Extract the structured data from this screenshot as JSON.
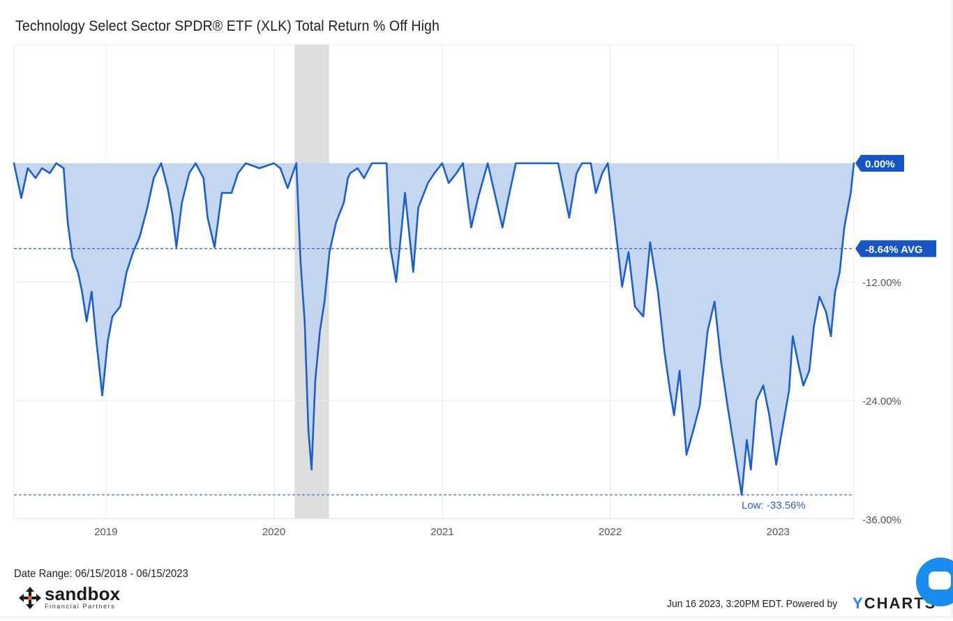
{
  "title": "Technology Select Sector SPDR® ETF (XLK) Total Return % Off High",
  "footer": {
    "date_range": "Date Range: 06/15/2018 - 06/15/2023",
    "timestamp": "Jun 16 2023, 3:20PM EDT. Powered by",
    "powered_brand_y": "Y",
    "powered_brand_rest": "CHARTS"
  },
  "logo": {
    "name": "sandbox",
    "subtitle": "Financial Partners"
  },
  "colors": {
    "line": "#1a5fd1",
    "fill": "#c2d4f0",
    "recession": "#dedede",
    "label_bg": "#1556c4",
    "axis_text": "#555555",
    "grid": "#ebebeb"
  },
  "chart_data": {
    "type": "area",
    "x_start": "2018-06-15",
    "x_end": "2023-06-15",
    "x_ticks": [
      {
        "date": "2019-01-01",
        "label": "2019"
      },
      {
        "date": "2020-01-01",
        "label": "2020"
      },
      {
        "date": "2021-01-01",
        "label": "2021"
      },
      {
        "date": "2022-01-01",
        "label": "2022"
      },
      {
        "date": "2023-01-01",
        "label": "2023"
      }
    ],
    "y_ticks": [
      {
        "value": 0,
        "label": "0.00%"
      },
      {
        "value": -12,
        "label": "-12.00%"
      },
      {
        "value": -24,
        "label": "-24.00%"
      },
      {
        "value": -36,
        "label": "-36.00%"
      }
    ],
    "ylim": [
      -36,
      12
    ],
    "recession_band": [
      "2020-02-15",
      "2020-04-30"
    ],
    "average": {
      "value": -8.64,
      "label": "-8.64% AVG"
    },
    "current": {
      "value": 0.0,
      "label": "0.00%"
    },
    "low": {
      "value": -33.56,
      "label": "Low: -33.56%"
    },
    "series": [
      {
        "points": [
          [
            "2018-06-15",
            0.0
          ],
          [
            "2018-07-01",
            -3.5
          ],
          [
            "2018-07-15",
            -0.5
          ],
          [
            "2018-08-01",
            -1.5
          ],
          [
            "2018-08-15",
            -0.5
          ],
          [
            "2018-09-01",
            -1.0
          ],
          [
            "2018-09-15",
            0.0
          ],
          [
            "2018-10-01",
            -0.5
          ],
          [
            "2018-10-10",
            -6.0
          ],
          [
            "2018-10-20",
            -9.5
          ],
          [
            "2018-11-01",
            -11.0
          ],
          [
            "2018-11-10",
            -13.0
          ],
          [
            "2018-11-20",
            -16.0
          ],
          [
            "2018-12-01",
            -13.0
          ],
          [
            "2018-12-10",
            -17.5
          ],
          [
            "2018-12-24",
            -23.5
          ],
          [
            "2019-01-05",
            -18.0
          ],
          [
            "2019-01-15",
            -15.5
          ],
          [
            "2019-02-01",
            -14.5
          ],
          [
            "2019-02-15",
            -11.0
          ],
          [
            "2019-03-01",
            -9.0
          ],
          [
            "2019-03-15",
            -7.5
          ],
          [
            "2019-04-01",
            -4.5
          ],
          [
            "2019-04-15",
            -1.5
          ],
          [
            "2019-05-01",
            0.0
          ],
          [
            "2019-05-15",
            -2.5
          ],
          [
            "2019-05-25",
            -5.0
          ],
          [
            "2019-06-03",
            -8.5
          ],
          [
            "2019-06-15",
            -4.0
          ],
          [
            "2019-07-01",
            -1.0
          ],
          [
            "2019-07-15",
            0.0
          ],
          [
            "2019-08-01",
            -1.5
          ],
          [
            "2019-08-10",
            -5.5
          ],
          [
            "2019-08-25",
            -8.5
          ],
          [
            "2019-09-10",
            -3.0
          ],
          [
            "2019-10-01",
            -3.0
          ],
          [
            "2019-10-15",
            -1.0
          ],
          [
            "2019-11-01",
            0.0
          ],
          [
            "2019-12-01",
            -0.5
          ],
          [
            "2020-01-01",
            0.0
          ],
          [
            "2020-01-15",
            -0.5
          ],
          [
            "2020-01-31",
            -2.5
          ],
          [
            "2020-02-19",
            0.0
          ],
          [
            "2020-02-28",
            -10.0
          ],
          [
            "2020-03-08",
            -16.0
          ],
          [
            "2020-03-16",
            -27.0
          ],
          [
            "2020-03-23",
            -31.0
          ],
          [
            "2020-03-31",
            -22.0
          ],
          [
            "2020-04-10",
            -17.0
          ],
          [
            "2020-04-20",
            -14.0
          ],
          [
            "2020-05-01",
            -9.0
          ],
          [
            "2020-05-15",
            -6.0
          ],
          [
            "2020-06-01",
            -4.0
          ],
          [
            "2020-06-10",
            -1.5
          ],
          [
            "2020-06-15",
            -1.0
          ],
          [
            "2020-07-01",
            -0.5
          ],
          [
            "2020-07-15",
            -1.5
          ],
          [
            "2020-08-01",
            0.0
          ],
          [
            "2020-08-15",
            0.0
          ],
          [
            "2020-09-02",
            0.0
          ],
          [
            "2020-09-10",
            -8.5
          ],
          [
            "2020-09-23",
            -12.0
          ],
          [
            "2020-10-05",
            -6.5
          ],
          [
            "2020-10-12",
            -3.0
          ],
          [
            "2020-10-30",
            -11.0
          ],
          [
            "2020-11-10",
            -4.5
          ],
          [
            "2020-12-01",
            -2.0
          ],
          [
            "2020-12-15",
            -1.0
          ],
          [
            "2021-01-01",
            0.0
          ],
          [
            "2021-01-15",
            -2.0
          ],
          [
            "2021-02-01",
            -1.0
          ],
          [
            "2021-02-15",
            0.0
          ],
          [
            "2021-03-05",
            -6.5
          ],
          [
            "2021-03-20",
            -3.5
          ],
          [
            "2021-04-10",
            0.0
          ],
          [
            "2021-05-12",
            -6.5
          ],
          [
            "2021-05-25",
            -3.5
          ],
          [
            "2021-06-10",
            0.0
          ],
          [
            "2021-07-01",
            0.0
          ],
          [
            "2021-08-01",
            0.0
          ],
          [
            "2021-09-10",
            0.0
          ],
          [
            "2021-10-04",
            -5.5
          ],
          [
            "2021-10-20",
            -1.0
          ],
          [
            "2021-11-01",
            0.0
          ],
          [
            "2021-11-20",
            0.0
          ],
          [
            "2021-12-01",
            -3.0
          ],
          [
            "2021-12-15",
            -1.0
          ],
          [
            "2021-12-27",
            0.0
          ],
          [
            "2022-01-10",
            -5.5
          ],
          [
            "2022-01-27",
            -12.5
          ],
          [
            "2022-02-10",
            -9.0
          ],
          [
            "2022-02-24",
            -14.5
          ],
          [
            "2022-03-14",
            -15.5
          ],
          [
            "2022-03-29",
            -8.0
          ],
          [
            "2022-04-15",
            -13.0
          ],
          [
            "2022-04-29",
            -19.0
          ],
          [
            "2022-05-11",
            -23.0
          ],
          [
            "2022-05-20",
            -25.5
          ],
          [
            "2022-06-01",
            -21.0
          ],
          [
            "2022-06-16",
            -29.5
          ],
          [
            "2022-07-01",
            -27.0
          ],
          [
            "2022-07-15",
            -24.5
          ],
          [
            "2022-08-01",
            -17.0
          ],
          [
            "2022-08-16",
            -14.0
          ],
          [
            "2022-08-30",
            -20.0
          ],
          [
            "2022-09-13",
            -24.5
          ],
          [
            "2022-09-30",
            -29.5
          ],
          [
            "2022-10-14",
            -33.56
          ],
          [
            "2022-10-25",
            -28.0
          ],
          [
            "2022-11-03",
            -31.0
          ],
          [
            "2022-11-15",
            -24.0
          ],
          [
            "2022-11-30",
            -22.5
          ],
          [
            "2022-12-13",
            -25.5
          ],
          [
            "2022-12-28",
            -30.5
          ],
          [
            "2023-01-10",
            -27.0
          ],
          [
            "2023-01-25",
            -23.0
          ],
          [
            "2023-02-02",
            -17.5
          ],
          [
            "2023-02-15",
            -20.5
          ],
          [
            "2023-02-25",
            -22.5
          ],
          [
            "2023-03-10",
            -21.0
          ],
          [
            "2023-03-20",
            -16.5
          ],
          [
            "2023-04-01",
            -13.5
          ],
          [
            "2023-04-15",
            -15.0
          ],
          [
            "2023-04-26",
            -17.5
          ],
          [
            "2023-05-05",
            -13.0
          ],
          [
            "2023-05-15",
            -11.0
          ],
          [
            "2023-05-25",
            -6.5
          ],
          [
            "2023-06-02",
            -4.5
          ],
          [
            "2023-06-08",
            -3.0
          ],
          [
            "2023-06-15",
            0.0
          ]
        ]
      }
    ]
  }
}
